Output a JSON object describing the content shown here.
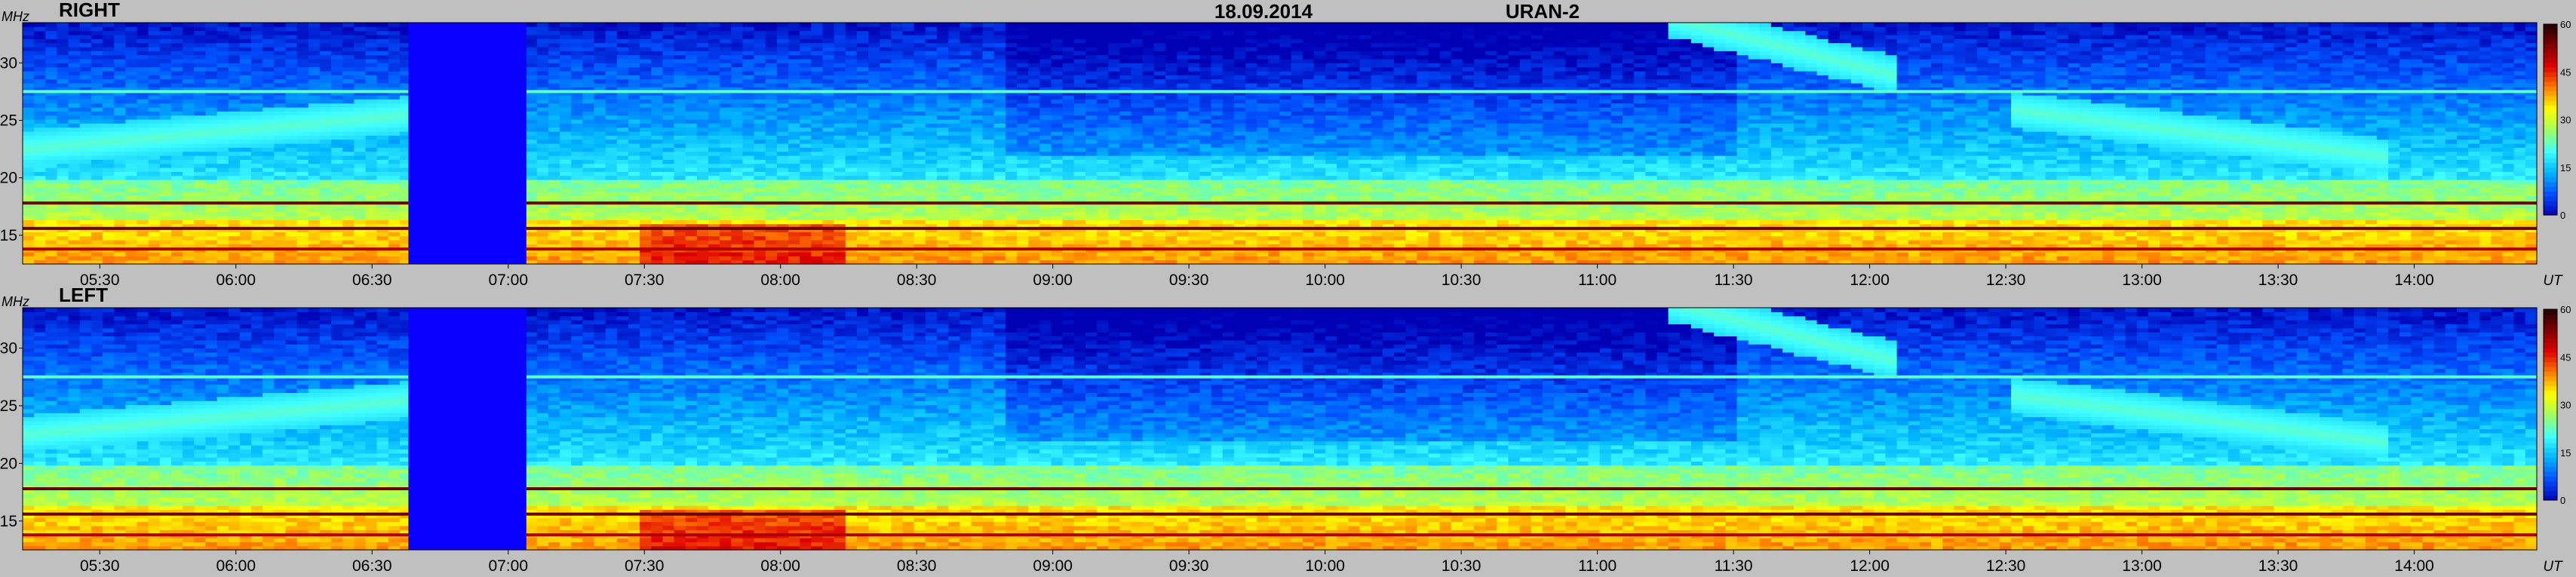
{
  "header": {
    "date": "18.09.2014",
    "instrument": "URAN-2"
  },
  "colors": {
    "background": "#c0c0c0",
    "empty_band": "#0a00ff",
    "colormap": [
      "#0000b4",
      "#0050ff",
      "#00b4ff",
      "#40ffff",
      "#a0ff60",
      "#ffff00",
      "#ff8000",
      "#e00000",
      "#800000",
      "#200000"
    ]
  },
  "chart_data": [
    {
      "type": "heatmap",
      "title": "RIGHT",
      "xlabel": "UT",
      "ylabel": "MHz",
      "xlim": [
        "05:13",
        "14:27"
      ],
      "ylim": [
        12.5,
        33.5
      ],
      "x_ticks": [
        "05:30",
        "06:00",
        "06:30",
        "07:00",
        "07:30",
        "08:00",
        "08:30",
        "09:00",
        "09:30",
        "10:00",
        "10:30",
        "11:00",
        "11:30",
        "12:00",
        "12:30",
        "13:00",
        "13:30",
        "14:00"
      ],
      "y_ticks": [
        15,
        20,
        25,
        30
      ],
      "colorbar": {
        "range": [
          0,
          60
        ],
        "ticks": [
          0,
          15,
          30,
          45,
          60
        ]
      },
      "gap": [
        "06:38",
        "07:04"
      ],
      "features": [
        {
          "kind": "band",
          "freq": 17.8,
          "level": 55
        },
        {
          "kind": "band",
          "freq": 15.6,
          "level": 55
        },
        {
          "kind": "band",
          "freq": 13.8,
          "level": 50
        },
        {
          "kind": "band",
          "freq": 27.5,
          "level": 22
        },
        {
          "kind": "drift",
          "from": [
            "05:13",
            22.5
          ],
          "to": [
            "06:38",
            25.5
          ],
          "level": 22
        },
        {
          "kind": "drift",
          "from": [
            "11:15",
            34.0
          ],
          "to": [
            "12:05",
            29.0
          ],
          "level": 22
        },
        {
          "kind": "drift",
          "from": [
            "12:30",
            26.0
          ],
          "to": [
            "13:55",
            21.8
          ],
          "level": 22
        }
      ]
    },
    {
      "type": "heatmap",
      "title": "LEFT",
      "xlabel": "UT",
      "ylabel": "MHz",
      "xlim": [
        "05:13",
        "14:27"
      ],
      "ylim": [
        12.5,
        33.5
      ],
      "x_ticks": [
        "05:30",
        "06:00",
        "06:30",
        "07:00",
        "07:30",
        "08:00",
        "08:30",
        "09:00",
        "09:30",
        "10:00",
        "10:30",
        "11:00",
        "11:30",
        "12:00",
        "12:30",
        "13:00",
        "13:30",
        "14:00"
      ],
      "y_ticks": [
        15,
        20,
        25,
        30
      ],
      "colorbar": {
        "range": [
          0,
          60
        ],
        "ticks": [
          0,
          15,
          30,
          45,
          60
        ]
      },
      "gap": [
        "06:38",
        "07:04"
      ],
      "features": [
        {
          "kind": "band",
          "freq": 17.8,
          "level": 55
        },
        {
          "kind": "band",
          "freq": 15.6,
          "level": 55
        },
        {
          "kind": "band",
          "freq": 13.8,
          "level": 50
        },
        {
          "kind": "band",
          "freq": 27.5,
          "level": 22
        },
        {
          "kind": "drift",
          "from": [
            "05:13",
            22.5
          ],
          "to": [
            "06:38",
            25.5
          ],
          "level": 22
        },
        {
          "kind": "drift",
          "from": [
            "11:15",
            34.0
          ],
          "to": [
            "12:05",
            29.0
          ],
          "level": 22
        },
        {
          "kind": "drift",
          "from": [
            "12:30",
            26.0
          ],
          "to": [
            "13:55",
            21.8
          ],
          "level": 22
        }
      ]
    }
  ]
}
